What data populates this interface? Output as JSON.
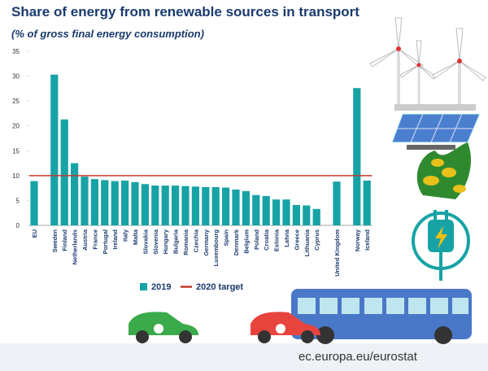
{
  "chart_data": {
    "type": "bar",
    "title": "Share of energy from renewable sources in transport",
    "subtitle": "(% of gross final energy consumption)",
    "categories": [
      "EU",
      null,
      "Sweden",
      "Finland",
      "Netherlands",
      "Austria",
      "France",
      "Portugal",
      "Ireland",
      "Italy",
      "Malta",
      "Slovakia",
      "Slovenia",
      "Hungary",
      "Bulgaria",
      "Romania",
      "Czechia",
      "Germany",
      "Luxembourg",
      "Spain",
      "Denmark",
      "Belgium",
      "Poland",
      "Croatia",
      "Estonia",
      "Latvia",
      "Greece",
      "Lithuania",
      "Cyprus",
      null,
      "United Kingdom",
      null,
      "Norway",
      "Iceland"
    ],
    "series": [
      {
        "name": "2019",
        "color": "#17a3a5",
        "values": [
          8.9,
          null,
          30.3,
          21.3,
          12.5,
          9.8,
          9.3,
          9.1,
          8.9,
          9.0,
          8.7,
          8.3,
          8.0,
          8.0,
          8.0,
          7.9,
          7.8,
          7.7,
          7.7,
          7.6,
          7.2,
          6.9,
          6.1,
          5.9,
          5.2,
          5.2,
          4.1,
          4.0,
          3.3,
          null,
          8.8,
          null,
          27.6,
          9.0
        ]
      }
    ],
    "target": {
      "name": "2020 target",
      "value": 10,
      "color": "#c0392b"
    },
    "ylim": [
      0,
      35
    ],
    "yticks": [
      0,
      5,
      10,
      15,
      20,
      25,
      30,
      35
    ],
    "grid": false,
    "source": "ec.europa.eu/eurostat"
  }
}
